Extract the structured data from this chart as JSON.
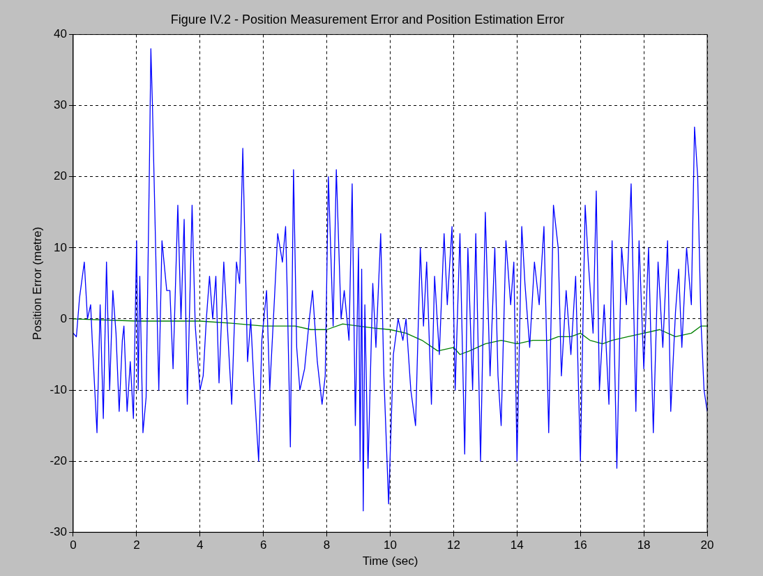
{
  "chart_data": {
    "type": "line",
    "title": "Figure IV.2 - Position Measurement Error and Position Estimation Error",
    "xlabel": "Time (sec)",
    "ylabel": "Position Error (metre)",
    "xlim": [
      0,
      20
    ],
    "xticks": [
      0,
      2,
      4,
      6,
      8,
      10,
      12,
      14,
      16,
      18,
      20
    ],
    "ylim": [
      -30,
      40
    ],
    "yticks": [
      -30,
      -20,
      -10,
      0,
      10,
      20,
      30,
      40
    ],
    "grid": true,
    "legend": false,
    "marker": "none",
    "line_style": "solid",
    "series": [
      {
        "color": "#0000ff",
        "x": [
          0,
          0.1,
          0.2,
          0.35,
          0.45,
          0.55,
          0.6,
          0.75,
          0.85,
          0.95,
          1.05,
          1.15,
          1.25,
          1.35,
          1.45,
          1.55,
          1.6,
          1.7,
          1.8,
          1.9,
          2.0,
          2.05,
          2.1,
          2.2,
          2.3,
          2.4,
          2.45,
          2.5,
          2.6,
          2.7,
          2.8,
          2.95,
          3.05,
          3.15,
          3.3,
          3.4,
          3.5,
          3.6,
          3.75,
          3.85,
          4.0,
          4.1,
          4.2,
          4.3,
          4.4,
          4.5,
          4.6,
          4.75,
          4.9,
          5.0,
          5.15,
          5.25,
          5.35,
          5.5,
          5.6,
          5.7,
          5.85,
          5.95,
          6.1,
          6.2,
          6.35,
          6.45,
          6.6,
          6.7,
          6.75,
          6.85,
          6.95,
          7.05,
          7.15,
          7.3,
          7.45,
          7.55,
          7.7,
          7.85,
          7.95,
          8.05,
          8.2,
          8.3,
          8.45,
          8.55,
          8.7,
          8.8,
          8.9,
          9.0,
          9.05,
          9.1,
          9.15,
          9.2,
          9.3,
          9.45,
          9.55,
          9.7,
          9.8,
          9.95,
          10.1,
          10.25,
          10.4,
          10.5,
          10.65,
          10.8,
          10.95,
          11.05,
          11.15,
          11.3,
          11.4,
          11.55,
          11.7,
          11.8,
          11.95,
          12.05,
          12.2,
          12.35,
          12.45,
          12.6,
          12.7,
          12.85,
          13.0,
          13.15,
          13.3,
          13.4,
          13.5,
          13.65,
          13.8,
          13.9,
          14.0,
          14.15,
          14.25,
          14.4,
          14.55,
          14.7,
          14.85,
          15.0,
          15.15,
          15.3,
          15.4,
          15.55,
          15.7,
          15.85,
          16.0,
          16.15,
          16.25,
          16.4,
          16.5,
          16.6,
          16.75,
          16.9,
          17.0,
          17.15,
          17.3,
          17.45,
          17.6,
          17.75,
          17.85,
          18.0,
          18.15,
          18.3,
          18.45,
          18.6,
          18.75,
          18.85,
          19.0,
          19.1,
          19.2,
          19.35,
          19.5,
          19.6,
          19.7,
          19.8,
          19.9,
          20.0
        ],
        "values": [
          -2,
          -2.5,
          3,
          8,
          0,
          2,
          -3,
          -16,
          2,
          -14,
          8,
          -10,
          4,
          -2,
          -13,
          -3,
          -1,
          -13,
          -6,
          -14,
          11,
          -10,
          6,
          -16,
          -11,
          20,
          38,
          30,
          10,
          -10,
          11,
          4,
          4,
          -7,
          16,
          0,
          14,
          -12,
          16,
          -1,
          -10,
          -8,
          0,
          6,
          0,
          6,
          -9,
          8,
          -4,
          -12,
          8,
          5,
          24,
          -6,
          0,
          -9,
          -20,
          -3,
          4,
          -10,
          3,
          12,
          8,
          13,
          4,
          -18,
          21,
          -4,
          -10,
          -7,
          0,
          4,
          -6,
          -12,
          -8,
          20,
          -1,
          21,
          0,
          4,
          -3,
          19,
          -15,
          10,
          -20,
          7,
          -27,
          2,
          -21,
          5,
          -4,
          12,
          -8,
          -26,
          -5,
          0,
          -3,
          0,
          -10,
          -15,
          10,
          -1,
          8,
          -12,
          6,
          -5,
          12,
          2,
          13,
          -10,
          12,
          -19,
          10,
          -10,
          12,
          -20,
          15,
          -8,
          10,
          -8,
          -15,
          11,
          2,
          8,
          -20,
          13,
          5,
          -4,
          8,
          2,
          13,
          -16,
          16,
          10,
          -8,
          4,
          -5,
          6,
          -20,
          16,
          8,
          -2,
          18,
          -10,
          2,
          -12,
          11,
          -21,
          10,
          2,
          19,
          -13,
          11,
          -7,
          10,
          -16,
          8,
          -4,
          11,
          -13,
          1,
          7,
          -4,
          10,
          2,
          27,
          20,
          0,
          -10,
          -13
        ]
      },
      {
        "color": "#008000",
        "x": [
          0,
          2,
          4,
          5,
          6,
          7,
          7.5,
          8,
          8.5,
          9,
          9.5,
          10,
          10.5,
          11,
          11.5,
          12,
          12.2,
          12.5,
          13,
          13.5,
          14,
          14.5,
          15,
          15.3,
          15.7,
          16,
          16.3,
          16.7,
          17,
          17.5,
          18,
          18.5,
          19,
          19.5,
          19.8,
          20
        ],
        "values": [
          0,
          -0.3,
          -0.3,
          -0.6,
          -1,
          -1,
          -1.5,
          -1.5,
          -0.7,
          -1,
          -1.3,
          -1.5,
          -2,
          -3,
          -4.5,
          -4,
          -5,
          -4.5,
          -3.5,
          -3,
          -3.5,
          -3,
          -3,
          -2.5,
          -2.5,
          -2,
          -3,
          -3.5,
          -3,
          -2.5,
          -2,
          -1.5,
          -2.5,
          -2,
          -1,
          -1
        ]
      }
    ]
  }
}
